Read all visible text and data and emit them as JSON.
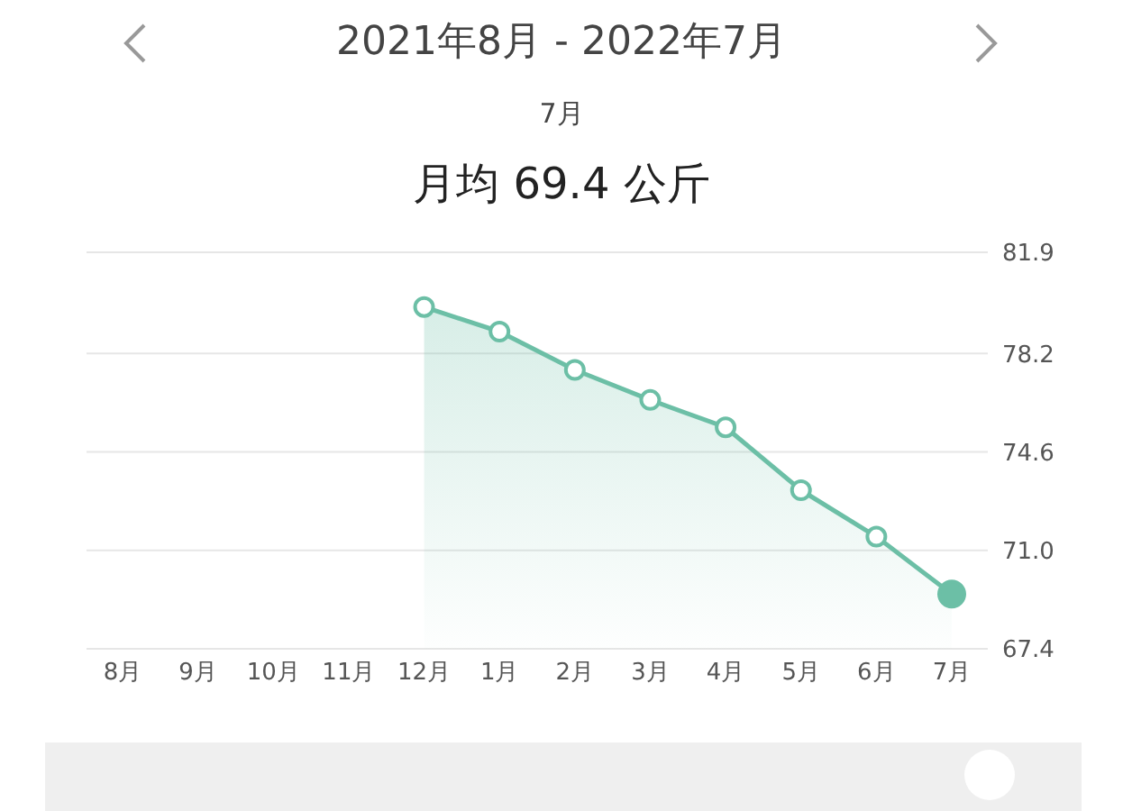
{
  "chart_data": {
    "type": "area",
    "title": "2021年8月 - 2022年7月",
    "subtitle": "7月",
    "annotations": [
      "月均 69.4 公斤"
    ],
    "categories": [
      "8月",
      "9月",
      "10月",
      "11月",
      "12月",
      "1月",
      "2月",
      "3月",
      "4月",
      "5月",
      "6月",
      "7月"
    ],
    "series": [
      {
        "color": "#6cbfa6",
        "values": [
          null,
          null,
          null,
          null,
          79.9,
          79.0,
          77.6,
          76.5,
          75.5,
          73.2,
          71.5,
          69.4
        ]
      }
    ],
    "ylim": [
      67.4,
      81.9
    ],
    "yticks": [
      67.4,
      {
        "value": 71,
        "label": "71.0"
      },
      74.6,
      78.2,
      81.9
    ],
    "grid": "y",
    "marker": "circle"
  }
}
